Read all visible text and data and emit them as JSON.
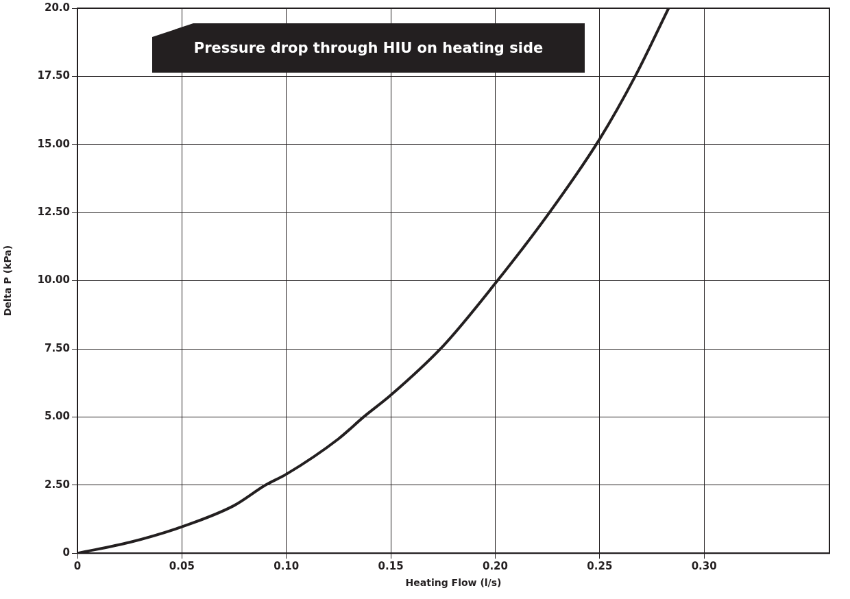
{
  "chart_data": {
    "type": "line",
    "title": "Pressure drop through HIU on heating side",
    "xlabel": "Heating Flow (l/s)",
    "ylabel": "Delta P (kPa)",
    "x": [
      0,
      0.025,
      0.05,
      0.075,
      0.09,
      0.1,
      0.125,
      0.137,
      0.15,
      0.175,
      0.2,
      0.225,
      0.25,
      0.267,
      0.283
    ],
    "series": [
      {
        "color": "#231f20",
        "values": [
          0,
          0.4,
          0.97,
          1.75,
          2.5,
          2.9,
          4.2,
          5,
          5.8,
          7.6,
          9.9,
          12.4,
          15.2,
          17.5,
          20
        ]
      }
    ],
    "xlim": [
      0,
      0.36
    ],
    "xticks": [
      0,
      {
        "value": 0.05,
        "label": "0.05"
      },
      {
        "value": 0.1,
        "label": "0.10"
      },
      {
        "value": 0.15,
        "label": "0.15"
      },
      {
        "value": 0.2,
        "label": "0.20"
      },
      {
        "value": 0.25,
        "label": "0.25"
      },
      {
        "value": 0.3,
        "label": "0.30"
      }
    ],
    "ylim": [
      0,
      20
    ],
    "yticks": [
      0,
      {
        "value": 2.5,
        "label": "2.50"
      },
      {
        "value": 5,
        "label": "5.00"
      },
      {
        "value": 7.5,
        "label": "7.50"
      },
      {
        "value": 10,
        "label": "10.00"
      },
      {
        "value": 12.5,
        "label": "12.50"
      },
      {
        "value": 15,
        "label": "15.00"
      },
      {
        "value": 17.5,
        "label": "17.50"
      },
      {
        "value": 20,
        "label": "20.0"
      }
    ],
    "grid": true,
    "legend": false,
    "marker": "none",
    "line_style": "solid"
  }
}
